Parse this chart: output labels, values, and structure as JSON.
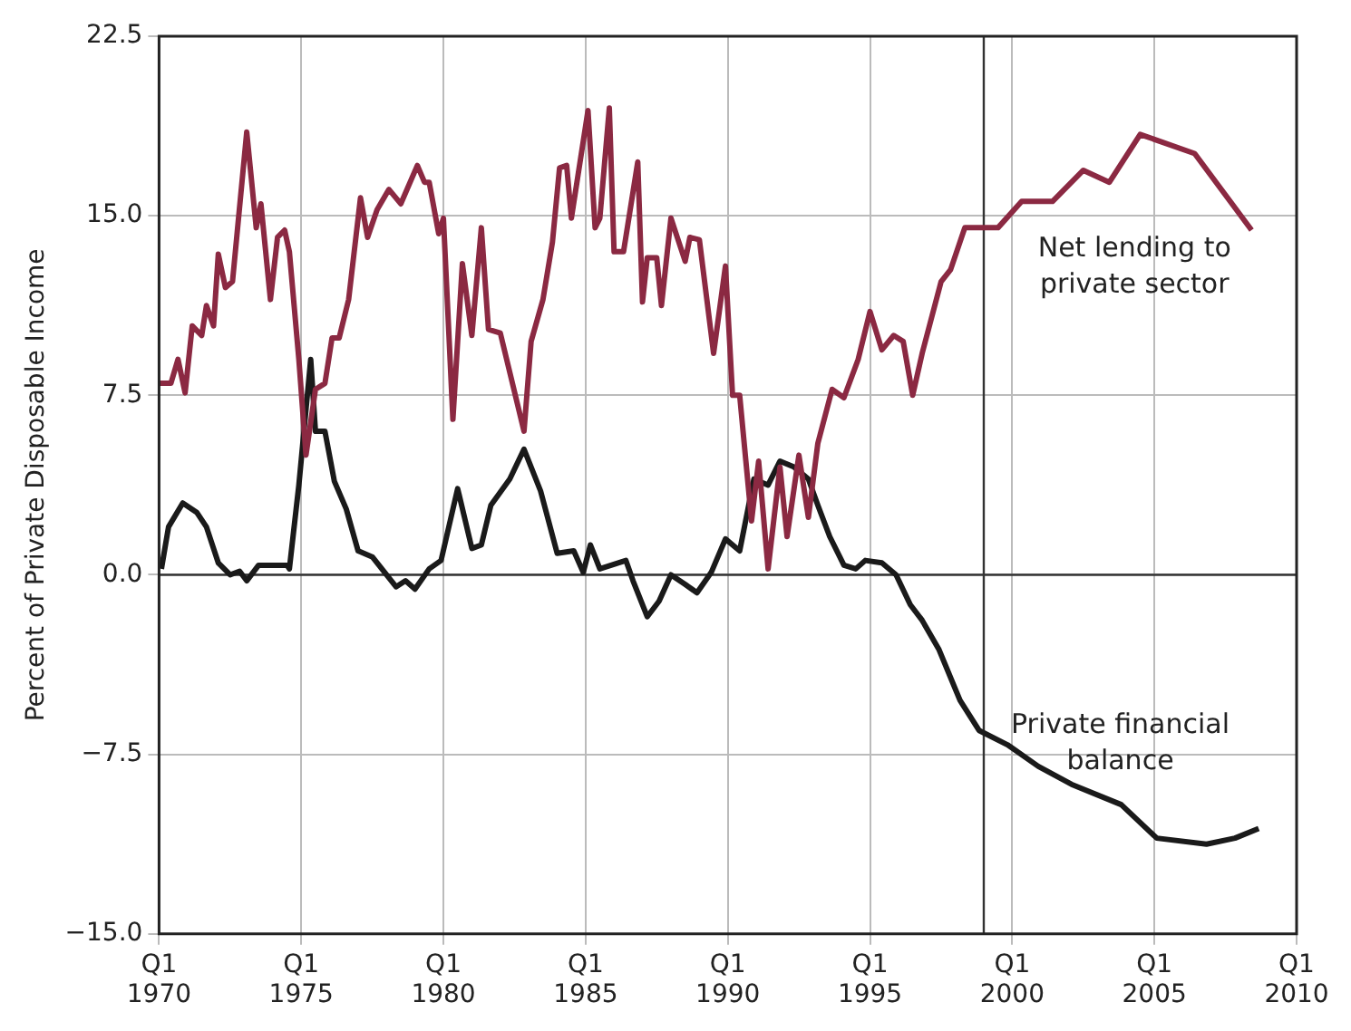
{
  "chart_data": {
    "type": "line",
    "ylabel": "Percent of Private Disposable Income",
    "xlim": [
      "1970-01",
      "2010-01"
    ],
    "xticks": [
      {
        "value": "1970-01",
        "label": "Q1 1970"
      },
      {
        "value": "1975-01",
        "label": "Q1 1975"
      },
      {
        "value": "1980-01",
        "label": "Q1 1980"
      },
      {
        "value": "1985-01",
        "label": "Q1 1985"
      },
      {
        "value": "1990-01",
        "label": "Q1 1990"
      },
      {
        "value": "1995-01",
        "label": "Q1 1995"
      },
      {
        "value": "2000-01",
        "label": "Q1 2000"
      },
      {
        "value": "2005-01",
        "label": "Q1 2005"
      },
      {
        "value": "2010-01",
        "label": "Q1 2010"
      }
    ],
    "ylim": [
      -15,
      22.5
    ],
    "yticks": [
      {
        "value": -15,
        "label": "−15.0"
      },
      {
        "value": -7.5,
        "label": "−7.5"
      },
      {
        "value": 0,
        "label": "0.0"
      },
      {
        "value": 7.5,
        "label": "7.5"
      },
      {
        "value": 15,
        "label": "15.0"
      },
      {
        "value": 22.5,
        "label": "22.5"
      }
    ],
    "grid": true,
    "legend": false,
    "marker": "none",
    "line_style": "solid",
    "ref_lines": [
      {
        "axis": "y",
        "value": 0,
        "color": "#333333"
      },
      {
        "axis": "x",
        "value": "1999-01",
        "color": "#333333"
      }
    ],
    "series": [
      {
        "name": "Net lending to private sector",
        "color": "#8b2942",
        "x": [
          "1970-01",
          "1970-06",
          "1970-09",
          "1970-12",
          "1971-03",
          "1971-07",
          "1971-09",
          "1971-12",
          "1972-02",
          "1972-05",
          "1972-08",
          "1973-02",
          "1973-06",
          "1973-08",
          "1973-12",
          "1974-03",
          "1974-06",
          "1974-08",
          "1974-12",
          "1975-03",
          "1975-07",
          "1975-11",
          "1976-02",
          "1976-05",
          "1976-09",
          "1977-02",
          "1977-05",
          "1977-09",
          "1978-02",
          "1978-07",
          "1979-02",
          "1979-05",
          "1979-07",
          "1979-11",
          "1980-01",
          "1980-05",
          "1980-09",
          "1981-01",
          "1981-05",
          "1981-08",
          "1982-01",
          "1982-11",
          "1983-02",
          "1983-07",
          "1983-11",
          "1984-02",
          "1984-05",
          "1984-07",
          "1985-02",
          "1985-05",
          "1985-07",
          "1985-11",
          "1986-01",
          "1986-05",
          "1986-11",
          "1987-01",
          "1987-03",
          "1987-07",
          "1987-09",
          "1988-01",
          "1988-07",
          "1988-09",
          "1989-01",
          "1989-07",
          "1989-12",
          "1990-03",
          "1990-06",
          "1990-11",
          "1991-02",
          "1991-06",
          "1991-11",
          "1992-02",
          "1992-07",
          "1992-11",
          "1993-03",
          "1993-09",
          "1994-02",
          "1994-08",
          "1995-01",
          "1995-06",
          "1995-11",
          "1996-03",
          "1996-07",
          "1996-11",
          "1997-07",
          "1997-11",
          "1998-05",
          "1999-07",
          "2000-05",
          "2001-06",
          "2002-07",
          "2003-06",
          "2004-07",
          "2006-06",
          "2008-06"
        ],
        "values": [
          8.0,
          8.0,
          9.0,
          7.6,
          10.4,
          10.0,
          11.25,
          10.4,
          13.4,
          12.0,
          12.25,
          18.5,
          14.5,
          15.5,
          11.5,
          14.1,
          14.4,
          13.5,
          9.0,
          5.0,
          7.75,
          8.0,
          9.9,
          9.9,
          11.5,
          15.75,
          14.1,
          15.25,
          16.1,
          15.5,
          17.1,
          16.4,
          16.4,
          14.25,
          14.9,
          6.5,
          13.0,
          10.0,
          14.5,
          10.25,
          10.1,
          6.0,
          9.75,
          11.5,
          13.9,
          17.0,
          17.1,
          14.9,
          19.4,
          14.5,
          14.9,
          19.5,
          13.5,
          13.5,
          17.25,
          11.4,
          13.25,
          13.25,
          11.25,
          14.9,
          13.1,
          14.1,
          14.0,
          9.25,
          12.9,
          7.5,
          7.5,
          2.25,
          4.75,
          0.25,
          4.5,
          1.6,
          5.0,
          2.4,
          5.5,
          7.75,
          7.4,
          9.0,
          11.0,
          9.4,
          10.0,
          9.75,
          7.5,
          9.25,
          12.25,
          12.75,
          14.5,
          14.5,
          15.6,
          15.6,
          16.9,
          16.4,
          18.4,
          17.6,
          14.4
        ]
      },
      {
        "name": "Private financial balance",
        "color": "#1a1a1a",
        "x": [
          "1970-02",
          "1970-05",
          "1970-11",
          "1971-05",
          "1971-09",
          "1972-02",
          "1972-07",
          "1972-11",
          "1973-02",
          "1973-07",
          "1974-07",
          "1974-08",
          "1974-12",
          "1975-05",
          "1975-07",
          "1975-11",
          "1976-03",
          "1976-08",
          "1977-01",
          "1977-07",
          "1978-05",
          "1978-09",
          "1979-01",
          "1979-07",
          "1979-12",
          "1980-07",
          "1981-01",
          "1981-05",
          "1981-09",
          "1982-05",
          "1982-11",
          "1983-06",
          "1984-01",
          "1984-08",
          "1984-12",
          "1985-03",
          "1985-07",
          "1986-06",
          "1986-09",
          "1987-03",
          "1987-08",
          "1988-01",
          "1988-07",
          "1988-12",
          "1989-06",
          "1989-12",
          "1990-06",
          "1990-12",
          "1991-06",
          "1991-11",
          "1992-05",
          "1992-11",
          "1993-03",
          "1993-08",
          "1994-02",
          "1994-07",
          "1994-11",
          "1995-06",
          "1995-12",
          "1996-06",
          "1996-11",
          "1997-06",
          "1998-03",
          "1998-11",
          "1999-11",
          "2000-12",
          "2002-02",
          "2003-11",
          "2005-02",
          "2006-11",
          "2007-11",
          "2008-09"
        ],
        "values": [
          0.25,
          2.0,
          3.0,
          2.6,
          2.0,
          0.5,
          0,
          0.15,
          -0.25,
          0.4,
          0.4,
          0.25,
          3.75,
          9.0,
          6.0,
          6.0,
          3.9,
          2.75,
          1.0,
          0.75,
          -0.5,
          -0.25,
          -0.6,
          0.25,
          0.6,
          3.6,
          1.1,
          1.25,
          2.9,
          4.0,
          5.25,
          3.5,
          0.9,
          1.0,
          0.1,
          1.25,
          0.25,
          0.6,
          -0.25,
          -1.75,
          -1.1,
          0,
          -0.4,
          -0.75,
          0.1,
          1.5,
          1.0,
          4.0,
          3.75,
          4.75,
          4.5,
          4.0,
          2.9,
          1.6,
          0.4,
          0.25,
          0.6,
          0.5,
          0,
          -1.25,
          -1.9,
          -3.1,
          -5.25,
          -6.5,
          -7.1,
          -8.0,
          -8.75,
          -9.6,
          -11.0,
          -11.25,
          -11.0,
          -10.6
        ]
      }
    ]
  }
}
